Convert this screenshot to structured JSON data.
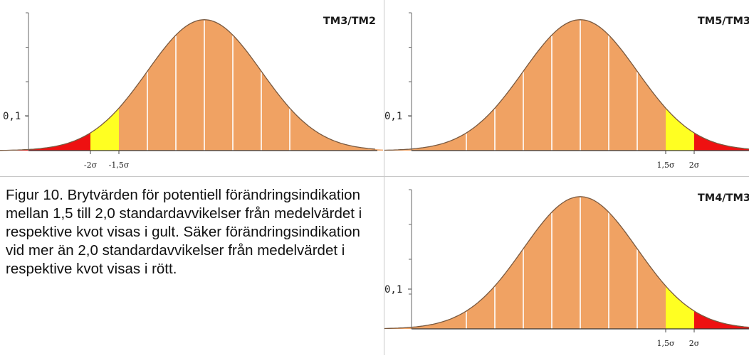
{
  "colors": {
    "body": "#f0a263",
    "warning": "#ffff22",
    "alert": "#ee1111",
    "curve": "#7a5a40",
    "divider": "#ffffff"
  },
  "caption": "Figur 10. Brytvärden för potentiell förändringsindikation mellan 1,5 till 2,0 standardavvikelser från medelvärdet i respektive kvot visas i gult. Säker förändringsindikation vid mer än 2,0 standardavvikelser från medelvärdet i respektive kvot visas i rött.",
  "chart_data": [
    {
      "type": "area",
      "title": "TM3/TM2",
      "tail": "left",
      "ytick_label": "0,1",
      "ytick_value": 0.1,
      "x_range_sigma": [
        -4,
        4
      ],
      "y_range": [
        0,
        0.42
      ],
      "warning_band_sigma": [
        -2,
        -1.5
      ],
      "alert_band_sigma": [
        -4,
        -2
      ],
      "xtick_labels": [
        "-2σ",
        "-1,5σ"
      ],
      "xtick_values_sigma": [
        -2,
        -1.5
      ],
      "divider_lines_sigma": [
        -1,
        -0.5,
        0,
        0.5,
        1,
        1.5
      ]
    },
    {
      "type": "area",
      "title": "TM5/TM3",
      "tail": "right",
      "ytick_label": "0,1",
      "ytick_value": 0.1,
      "x_range_sigma": [
        -4,
        4
      ],
      "y_range": [
        0,
        0.42
      ],
      "warning_band_sigma": [
        1.5,
        2
      ],
      "alert_band_sigma": [
        2,
        4
      ],
      "xtick_labels": [
        "1,5σ",
        "2σ"
      ],
      "xtick_values_sigma": [
        1.5,
        2
      ],
      "divider_lines_sigma": [
        -2,
        -1.5,
        -1,
        -0.5,
        0,
        0.5,
        1
      ]
    },
    {
      "type": "area",
      "title": "TM4/TM3",
      "tail": "right",
      "ytick_label": "0,1",
      "ytick_value": 0.1,
      "x_range_sigma": [
        -4,
        4
      ],
      "y_range": [
        0,
        0.42
      ],
      "warning_band_sigma": [
        1.5,
        2
      ],
      "alert_band_sigma": [
        2,
        4
      ],
      "xtick_labels": [
        "1,5σ",
        "2σ"
      ],
      "xtick_values_sigma": [
        1.5,
        2
      ],
      "divider_lines_sigma": [
        -2,
        -1.5,
        -1,
        -0.5,
        0,
        0.5,
        1
      ]
    }
  ]
}
